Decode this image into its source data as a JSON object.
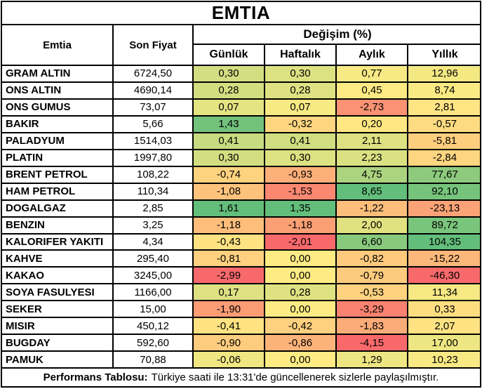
{
  "chart_data": {
    "type": "table",
    "title": "EMTIA",
    "group_header": "Değişim (%)",
    "columns": [
      "Emtia",
      "Son Fiyat",
      "Günlük",
      "Haftalık",
      "Aylık",
      "Yıllık"
    ],
    "rows": [
      {
        "name": "GRAM ALTIN",
        "price": "6724,50",
        "changes": [
          0.3,
          0.3,
          0.77,
          12.96
        ]
      },
      {
        "name": "ONS ALTIN",
        "price": "4690,14",
        "changes": [
          0.28,
          0.28,
          0.45,
          8.74
        ]
      },
      {
        "name": "ONS GUMUS",
        "price": "73,07",
        "changes": [
          0.07,
          0.07,
          -2.73,
          2.81
        ]
      },
      {
        "name": "BAKIR",
        "price": "5,66",
        "changes": [
          1.43,
          -0.32,
          0.2,
          -0.57
        ]
      },
      {
        "name": "PALADYUM",
        "price": "1514,03",
        "changes": [
          0.41,
          0.41,
          2.11,
          -5.81
        ]
      },
      {
        "name": "PLATIN",
        "price": "1997,80",
        "changes": [
          0.3,
          0.3,
          2.23,
          -2.84
        ]
      },
      {
        "name": "BRENT PETROL",
        "price": "108,22",
        "changes": [
          -0.74,
          -0.93,
          4.75,
          77.67
        ]
      },
      {
        "name": "HAM PETROL",
        "price": "110,34",
        "changes": [
          -1.08,
          -1.53,
          8.65,
          92.1
        ]
      },
      {
        "name": "DOGALGAZ",
        "price": "2,85",
        "changes": [
          1.61,
          1.35,
          -1.22,
          -23.13
        ]
      },
      {
        "name": "BENZIN",
        "price": "3,25",
        "changes": [
          -1.18,
          -1.18,
          2.0,
          89.72
        ]
      },
      {
        "name": "KALORIFER YAKITI",
        "price": "4,34",
        "changes": [
          -0.43,
          -2.01,
          6.6,
          104.35
        ]
      },
      {
        "name": "KAHVE",
        "price": "295,40",
        "changes": [
          -0.81,
          0.0,
          -0.82,
          -15.22
        ]
      },
      {
        "name": "KAKAO",
        "price": "3245,00",
        "changes": [
          -2.99,
          0.0,
          -0.79,
          -46.3
        ]
      },
      {
        "name": "SOYA FASULYESI",
        "price": "1166,00",
        "changes": [
          0.17,
          0.28,
          -0.53,
          11.34
        ]
      },
      {
        "name": "SEKER",
        "price": "15,00",
        "changes": [
          -1.9,
          0.0,
          -3.29,
          0.33
        ]
      },
      {
        "name": "MISIR",
        "price": "450,12",
        "changes": [
          -0.41,
          -0.42,
          -1.83,
          2.07
        ]
      },
      {
        "name": "BUGDAY",
        "price": "592,60",
        "changes": [
          -0.9,
          -0.86,
          -4.15,
          17.0
        ]
      },
      {
        "name": "PAMUK",
        "price": "70,88",
        "changes": [
          -0.06,
          0.0,
          1.29,
          10.23
        ]
      }
    ],
    "color_scale": {
      "min_color": "#F8696B",
      "mid_color": "#FFEB84",
      "max_color": "#63BE7B",
      "midpoint": "median-per-column"
    },
    "layout": {
      "grid_border_color": "#000000",
      "background_color": "#FFFFFF",
      "decimal_separator": ","
    },
    "footer": {
      "bold": "Performans Tablosu:",
      "text": "Türkiye saati ile 13:31'de güncellenerek sizlerle paylaşılmıştır."
    }
  }
}
